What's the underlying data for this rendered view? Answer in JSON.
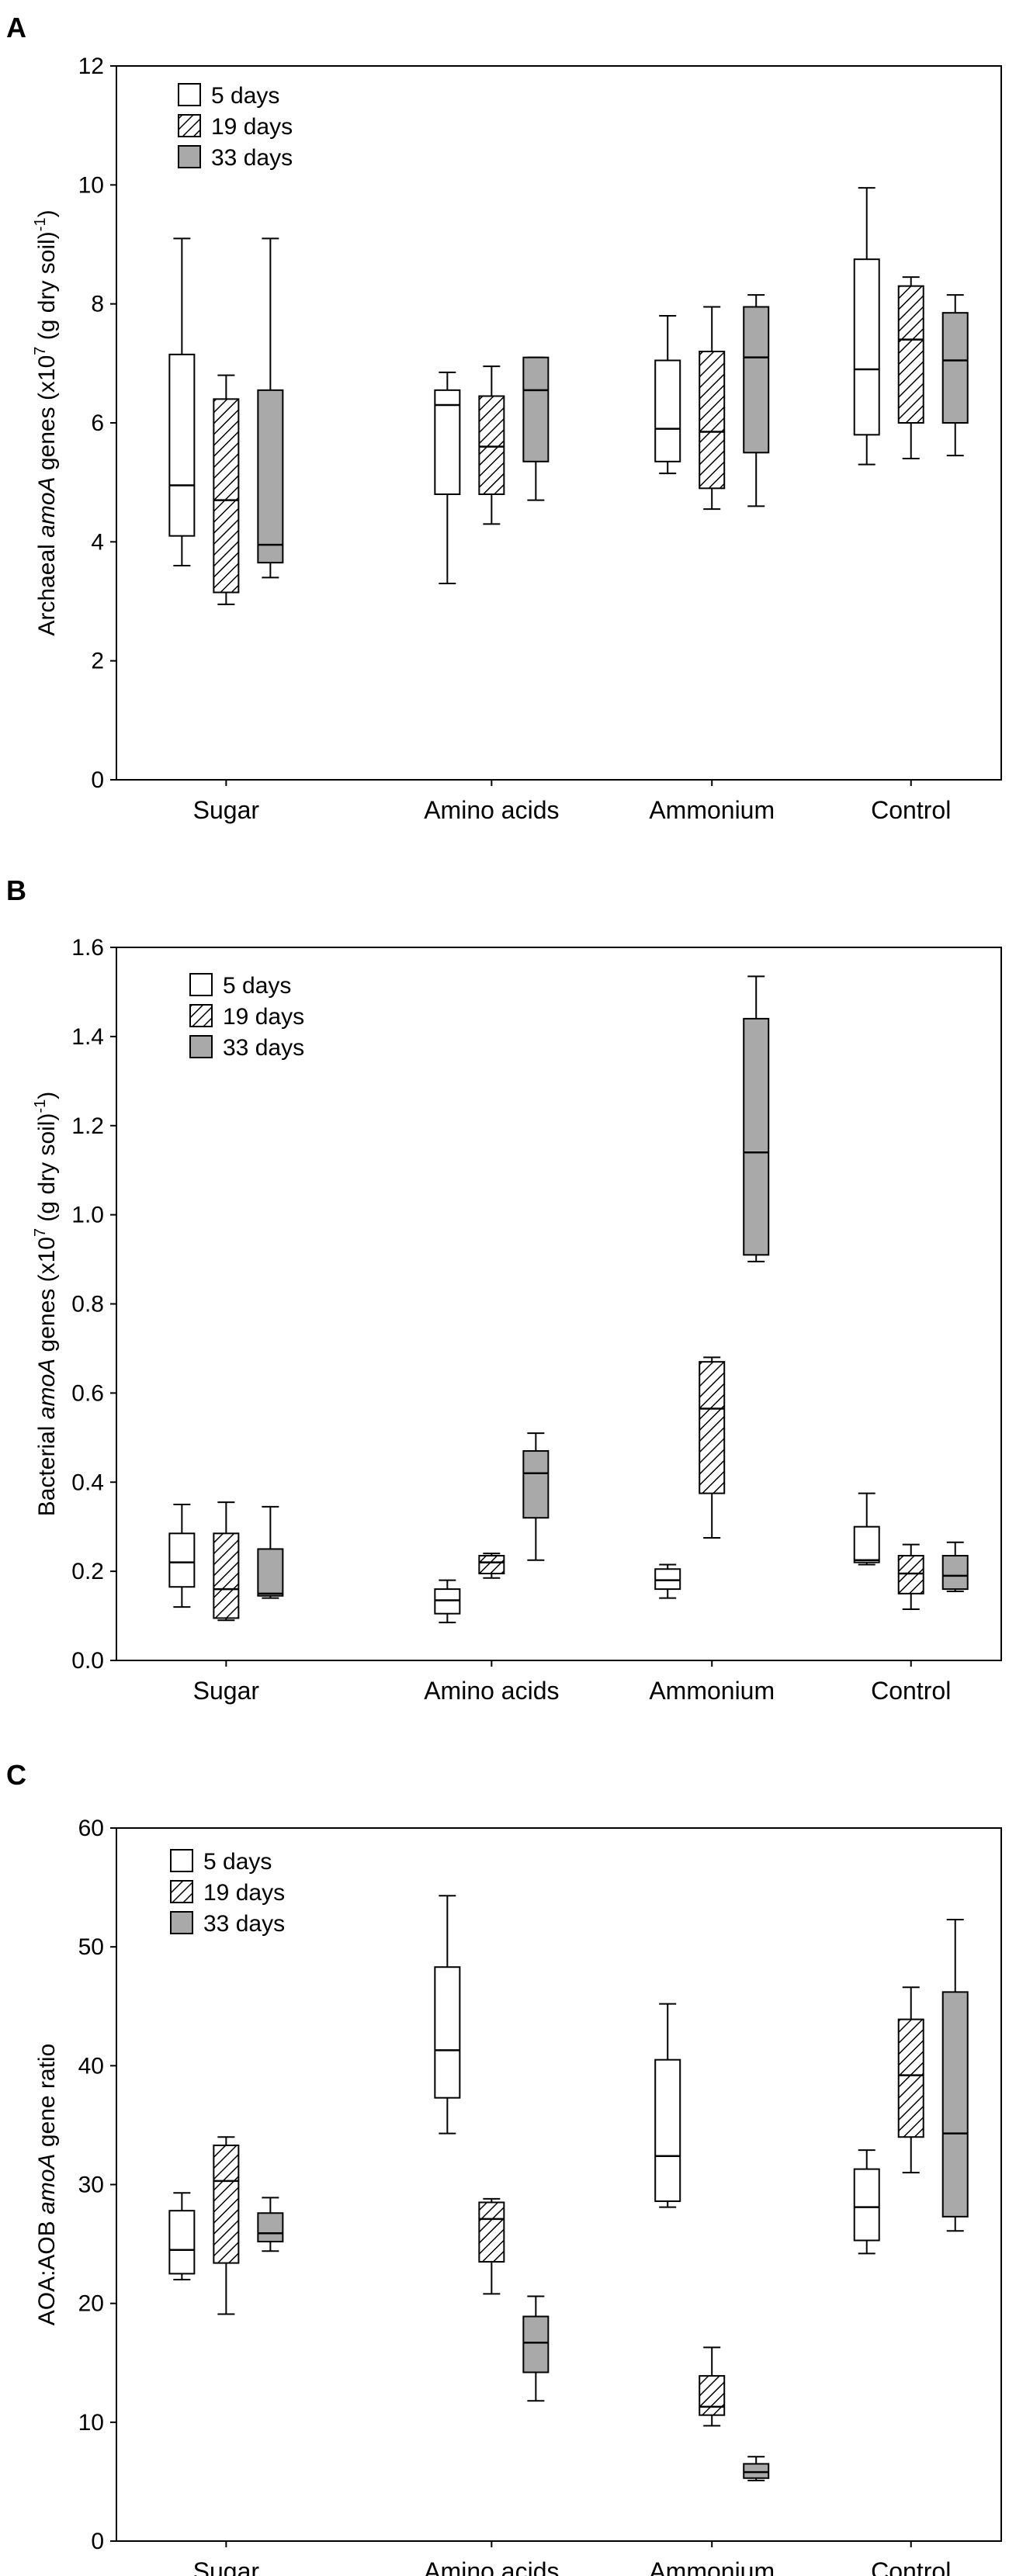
{
  "figure": {
    "colors": {
      "white_fill": "#ffffff",
      "gray_fill": "#a9a9a9",
      "hatch_line": "#000000"
    }
  },
  "chart_data": [
    {
      "type": "boxplot",
      "panel": "A",
      "ylabel_pre": "Archaeal ",
      "ylabel_em": "amoA",
      "ylabel_post": " genes (x10",
      "ylabel_sup1": "7",
      "ylabel_post2": " (g dry soil)",
      "ylabel_sup2": "-1",
      "ylabel_end": ")",
      "ylim": [
        0,
        12
      ],
      "yticks": [
        "0",
        "2",
        "4",
        "6",
        "8",
        "10",
        "12"
      ],
      "yticks_values": [
        0,
        2,
        4,
        6,
        8,
        10,
        12
      ],
      "categories": [
        "Sugar",
        "Amino acids",
        "Ammonium",
        "Control"
      ],
      "legend": [
        "5 days",
        "19 days",
        "33 days"
      ],
      "series": [
        {
          "name": "5 days",
          "fill": "white",
          "boxes": [
            {
              "min": 3.6,
              "q1": 4.1,
              "median": 4.95,
              "q3": 7.15,
              "max": 9.1
            },
            {
              "min": 3.3,
              "q1": 4.8,
              "median": 6.3,
              "q3": 6.55,
              "max": 6.85
            },
            {
              "min": 5.15,
              "q1": 5.35,
              "median": 5.9,
              "q3": 7.05,
              "max": 7.8
            },
            {
              "min": 5.3,
              "q1": 5.8,
              "median": 6.9,
              "q3": 8.75,
              "max": 9.95
            }
          ]
        },
        {
          "name": "19 days",
          "fill": "hatch",
          "boxes": [
            {
              "min": 2.95,
              "q1": 3.15,
              "median": 4.7,
              "q3": 6.4,
              "max": 6.8
            },
            {
              "min": 4.3,
              "q1": 4.8,
              "median": 5.6,
              "q3": 6.45,
              "max": 6.95
            },
            {
              "min": 4.55,
              "q1": 4.9,
              "median": 5.85,
              "q3": 7.2,
              "max": 7.95
            },
            {
              "min": 5.4,
              "q1": 6.0,
              "median": 7.4,
              "q3": 8.3,
              "max": 8.45
            }
          ]
        },
        {
          "name": "33 days",
          "fill": "gray",
          "boxes": [
            {
              "min": 3.4,
              "q1": 3.65,
              "median": 3.95,
              "q3": 6.55,
              "max": 9.1
            },
            {
              "min": 4.7,
              "q1": 5.35,
              "median": 6.55,
              "q3": 7.1,
              "max": 7.1
            },
            {
              "min": 4.6,
              "q1": 5.5,
              "median": 7.1,
              "q3": 7.95,
              "max": 8.15
            },
            {
              "min": 5.45,
              "q1": 6.0,
              "median": 7.05,
              "q3": 7.85,
              "max": 8.15
            }
          ]
        }
      ]
    },
    {
      "type": "boxplot",
      "panel": "B",
      "ylabel_pre": "Bacterial ",
      "ylabel_em": "amoA",
      "ylabel_post": " genes (x10",
      "ylabel_sup1": "7",
      "ylabel_post2": " (g dry soil)",
      "ylabel_sup2": "-1",
      "ylabel_end": ")",
      "ylim": [
        0,
        1.6
      ],
      "yticks": [
        "0.0",
        "0.2",
        "0.4",
        "0.6",
        "0.8",
        "1.0",
        "1.2",
        "1.4",
        "1.6"
      ],
      "yticks_values": [
        0,
        0.2,
        0.4,
        0.6,
        0.8,
        1.0,
        1.2,
        1.4,
        1.6
      ],
      "categories": [
        "Sugar",
        "Amino acids",
        "Ammonium",
        "Control"
      ],
      "legend": [
        "5 days",
        "19 days",
        "33 days"
      ],
      "series": [
        {
          "name": "5 days",
          "fill": "white",
          "boxes": [
            {
              "min": 0.12,
              "q1": 0.165,
              "median": 0.22,
              "q3": 0.285,
              "max": 0.35
            },
            {
              "min": 0.085,
              "q1": 0.105,
              "median": 0.135,
              "q3": 0.16,
              "max": 0.18
            },
            {
              "min": 0.14,
              "q1": 0.16,
              "median": 0.18,
              "q3": 0.205,
              "max": 0.215
            },
            {
              "min": 0.215,
              "q1": 0.22,
              "median": 0.225,
              "q3": 0.3,
              "max": 0.375
            }
          ]
        },
        {
          "name": "19 days",
          "fill": "hatch",
          "boxes": [
            {
              "min": 0.09,
              "q1": 0.095,
              "median": 0.16,
              "q3": 0.285,
              "max": 0.355
            },
            {
              "min": 0.185,
              "q1": 0.195,
              "median": 0.22,
              "q3": 0.235,
              "max": 0.24
            },
            {
              "min": 0.275,
              "q1": 0.375,
              "median": 0.565,
              "q3": 0.67,
              "max": 0.68
            },
            {
              "min": 0.115,
              "q1": 0.15,
              "median": 0.195,
              "q3": 0.235,
              "max": 0.26
            }
          ]
        },
        {
          "name": "33 days",
          "fill": "gray",
          "boxes": [
            {
              "min": 0.14,
              "q1": 0.145,
              "median": 0.15,
              "q3": 0.25,
              "max": 0.345
            },
            {
              "min": 0.225,
              "q1": 0.32,
              "median": 0.42,
              "q3": 0.47,
              "max": 0.51
            },
            {
              "min": 0.895,
              "q1": 0.91,
              "median": 1.14,
              "q3": 1.44,
              "max": 1.535
            },
            {
              "min": 0.155,
              "q1": 0.16,
              "median": 0.19,
              "q3": 0.235,
              "max": 0.265
            }
          ]
        }
      ]
    },
    {
      "type": "boxplot",
      "panel": "C",
      "ylabel_pre": "AOA:AOB ",
      "ylabel_em": "amoA",
      "ylabel_post": " gene ratio",
      "ylabel_sup1": "",
      "ylabel_post2": "",
      "ylabel_sup2": "",
      "ylabel_end": "",
      "ylim": [
        0,
        60
      ],
      "yticks": [
        "0",
        "10",
        "20",
        "30",
        "40",
        "50",
        "60"
      ],
      "yticks_values": [
        0,
        10,
        20,
        30,
        40,
        50,
        60
      ],
      "categories": [
        "Sugar",
        "Amino acids",
        "Ammonium",
        "Control"
      ],
      "legend": [
        "5 days",
        "19 days",
        "33 days"
      ],
      "series": [
        {
          "name": "5 days",
          "fill": "white",
          "boxes": [
            {
              "min": 22.0,
              "q1": 22.5,
              "median": 24.5,
              "q3": 27.8,
              "max": 29.3
            },
            {
              "min": 34.3,
              "q1": 37.3,
              "median": 41.3,
              "q3": 48.3,
              "max": 54.3
            },
            {
              "min": 28.1,
              "q1": 28.6,
              "median": 32.4,
              "q3": 40.5,
              "max": 45.2
            },
            {
              "min": 24.2,
              "q1": 25.3,
              "median": 28.1,
              "q3": 31.3,
              "max": 32.9
            }
          ]
        },
        {
          "name": "19 days",
          "fill": "hatch",
          "boxes": [
            {
              "min": 19.1,
              "q1": 23.4,
              "median": 30.3,
              "q3": 33.3,
              "max": 34.0
            },
            {
              "min": 20.8,
              "q1": 23.5,
              "median": 27.1,
              "q3": 28.5,
              "max": 28.8
            },
            {
              "min": 9.7,
              "q1": 10.6,
              "median": 11.3,
              "q3": 13.9,
              "max": 16.3
            },
            {
              "min": 31.0,
              "q1": 34.0,
              "median": 39.2,
              "q3": 43.9,
              "max": 46.6
            }
          ]
        },
        {
          "name": "33 days",
          "fill": "gray",
          "boxes": [
            {
              "min": 24.4,
              "q1": 25.2,
              "median": 25.9,
              "q3": 27.6,
              "max": 28.9
            },
            {
              "min": 11.8,
              "q1": 14.2,
              "median": 16.7,
              "q3": 18.9,
              "max": 20.6
            },
            {
              "min": 5.1,
              "q1": 5.3,
              "median": 5.8,
              "q3": 6.5,
              "max": 7.1
            },
            {
              "min": 26.1,
              "q1": 27.3,
              "median": 34.3,
              "q3": 46.2,
              "max": 52.3
            }
          ]
        }
      ]
    }
  ]
}
